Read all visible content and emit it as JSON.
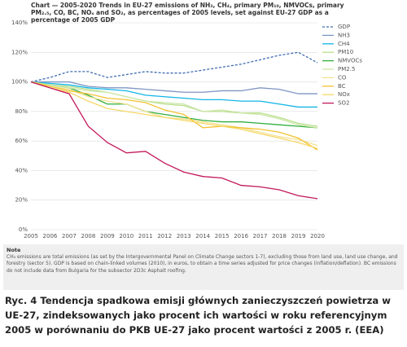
{
  "chart_data": {
    "type": "line",
    "title": "Chart — 2005-2020 Trends in EU-27 emissions of NH₃, CH₄, primary PM₁₀, NMVOCs, primary PM₂.₅, CO, BC, NOₓ and SO₂, as percentages of 2005 levels, set against EU-27 GDP as a percentage of 2005 GDP",
    "x": [
      2005,
      2006,
      2007,
      2008,
      2009,
      2010,
      2011,
      2012,
      2013,
      2014,
      2015,
      2016,
      2017,
      2018,
      2019,
      2020
    ],
    "xlim": [
      2005,
      2020
    ],
    "xticks": [
      2005,
      2006,
      2007,
      2008,
      2009,
      2010,
      2011,
      2012,
      2013,
      2014,
      2015,
      2016,
      2017,
      2018,
      2019,
      2020
    ],
    "ylim": [
      0,
      140
    ],
    "yticks": [
      {
        "value": 0,
        "label": "0%"
      },
      {
        "value": 20,
        "label": "20%"
      },
      {
        "value": 40,
        "label": "40%"
      },
      {
        "value": 60,
        "label": "60%"
      },
      {
        "value": 80,
        "label": "80%"
      },
      {
        "value": 100,
        "label": "100%"
      },
      {
        "value": 120,
        "label": "120%"
      },
      {
        "value": 140,
        "label": "140%"
      }
    ],
    "grid": true,
    "legend": "right",
    "series": [
      {
        "name": "GDP",
        "color": "#3f6db3",
        "style": "dashed",
        "values": [
          100,
          103,
          107,
          107,
          103,
          105,
          107,
          106,
          106,
          108,
          110,
          112,
          115,
          118,
          120,
          113
        ]
      },
      {
        "name": "NH3",
        "color": "#7f95c2",
        "values": [
          100,
          100,
          100,
          97,
          96,
          96,
          95,
          94,
          93,
          93,
          94,
          94,
          96,
          95,
          92,
          92
        ]
      },
      {
        "name": "CH4",
        "color": "#12b5e6",
        "values": [
          100,
          99,
          98,
          96,
          95,
          94,
          91,
          90,
          89,
          88,
          88,
          87,
          87,
          85,
          83,
          83
        ]
      },
      {
        "name": "PM10",
        "color": "#b9de8c",
        "values": [
          100,
          98,
          97,
          95,
          93,
          90,
          87,
          85,
          84,
          80,
          80,
          79,
          79,
          76,
          72,
          70
        ]
      },
      {
        "name": "NMVOCs",
        "color": "#2fae3e",
        "values": [
          100,
          98,
          96,
          91,
          85,
          85,
          80,
          78,
          76,
          74,
          73,
          73,
          72,
          71,
          70,
          69
        ]
      },
      {
        "name": "PM2.5",
        "color": "#cbe6a6",
        "values": [
          100,
          98,
          96,
          94,
          93,
          90,
          87,
          86,
          85,
          80,
          81,
          79,
          78,
          75,
          71,
          69
        ]
      },
      {
        "name": "CO",
        "color": "#f3e393",
        "values": [
          100,
          97,
          95,
          90,
          87,
          85,
          80,
          76,
          75,
          73,
          71,
          69,
          66,
          63,
          61,
          57
        ]
      },
      {
        "name": "BC",
        "color": "#f2c232",
        "values": [
          100,
          97,
          94,
          92,
          89,
          88,
          86,
          81,
          78,
          69,
          70,
          69,
          68,
          66,
          62,
          54
        ]
      },
      {
        "name": "NOx",
        "color": "#f6d765",
        "values": [
          100,
          96,
          93,
          87,
          82,
          80,
          78,
          76,
          74,
          72,
          70,
          68,
          65,
          62,
          59,
          55
        ]
      },
      {
        "name": "SO2",
        "color": "#c2185b",
        "values": [
          100,
          96,
          92,
          70,
          59,
          52,
          53,
          45,
          39,
          36,
          35,
          30,
          29,
          27,
          23,
          21
        ]
      }
    ]
  },
  "note": {
    "heading": "Note",
    "text": "CH₄ emissions are total emissions (as set by the Intergovernmental Panel on Climate Change sectors 1-7), excluding those from land use, land use change, and forestry (sector 5). GDP is based on chain-linked volumes (2010), in euros, to obtain a time series adjusted for price changes (inflation/deflation). BC emissions do not include data from Bulgaria for the subsector 2D3c Asphalt roofing."
  },
  "caption": "Ryc. 4 Tendencja spadkowa emisji głównych zanieczyszczeń powietrza w UE-27, zindeksowanych jako procent ich wartości w roku referencyjnym 2005 w porównaniu do PKB UE-27 jako procent wartości z 2005 r. (EEA)"
}
